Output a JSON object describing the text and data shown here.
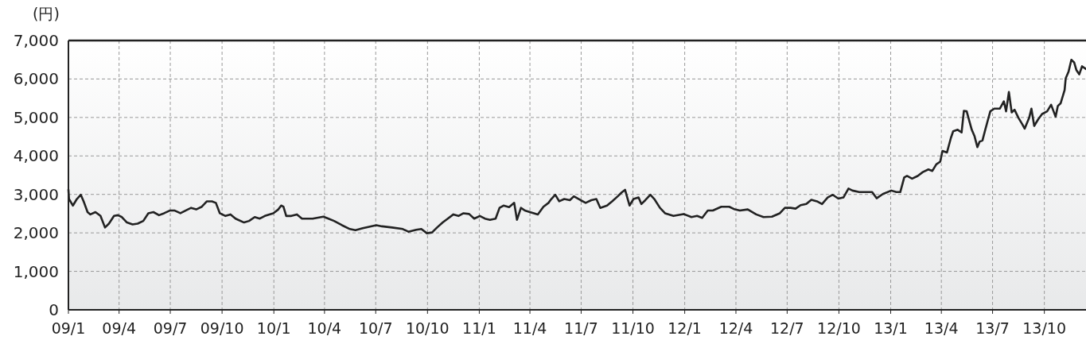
{
  "chart_data": {
    "type": "line",
    "ylabel": "(円)",
    "x": [
      "2009-01-01",
      "2009-01-02",
      "2009-01-09",
      "2009-01-16",
      "2009-01-23",
      "2009-01-28",
      "2009-02-04",
      "2009-02-09",
      "2009-02-18",
      "2009-02-27",
      "2009-03-07",
      "2009-03-14",
      "2009-03-23",
      "2009-03-30",
      "2009-04-06",
      "2009-04-15",
      "2009-04-25",
      "2009-05-04",
      "2009-05-14",
      "2009-05-23",
      "2009-06-01",
      "2009-06-11",
      "2009-06-20",
      "2009-06-30",
      "2009-07-09",
      "2009-07-19",
      "2009-07-28",
      "2009-08-07",
      "2009-08-16",
      "2009-08-26",
      "2009-09-04",
      "2009-09-13",
      "2009-09-20",
      "2009-09-27",
      "2009-10-07",
      "2009-10-16",
      "2009-10-25",
      "2009-11-09",
      "2009-11-18",
      "2009-11-28",
      "2009-12-07",
      "2009-12-16",
      "2009-12-31",
      "2010-01-09",
      "2010-01-14",
      "2010-01-18",
      "2010-01-23",
      "2010-02-01",
      "2010-02-11",
      "2010-02-20",
      "2010-03-11",
      "2010-03-30",
      "2010-04-08",
      "2010-04-18",
      "2010-05-02",
      "2010-05-16",
      "2010-05-26",
      "2010-06-08",
      "2010-07-02",
      "2010-07-12",
      "2010-07-30",
      "2010-08-18",
      "2010-08-28",
      "2010-09-11",
      "2010-09-20",
      "2010-09-30",
      "2010-10-09",
      "2010-10-18",
      "2010-10-28",
      "2010-11-06",
      "2010-11-16",
      "2010-11-25",
      "2010-12-04",
      "2010-12-14",
      "2010-12-23",
      "2011-01-02",
      "2011-01-11",
      "2011-01-20",
      "2011-01-30",
      "2011-02-06",
      "2011-02-13",
      "2011-02-23",
      "2011-03-04",
      "2011-03-09",
      "2011-03-16",
      "2011-03-23",
      "2011-04-01",
      "2011-04-15",
      "2011-04-25",
      "2011-05-04",
      "2011-05-09",
      "2011-05-16",
      "2011-05-23",
      "2011-06-01",
      "2011-06-11",
      "2011-06-18",
      "2011-06-30",
      "2011-07-09",
      "2011-07-19",
      "2011-07-28",
      "2011-08-04",
      "2011-08-16",
      "2011-08-25",
      "2011-09-04",
      "2011-09-11",
      "2011-09-17",
      "2011-09-25",
      "2011-10-02",
      "2011-10-11",
      "2011-10-16",
      "2011-10-23",
      "2011-11-01",
      "2011-11-08",
      "2011-11-18",
      "2011-11-27",
      "2011-12-12",
      "2011-12-30",
      "2012-01-13",
      "2012-01-23",
      "2012-02-01",
      "2012-02-11",
      "2012-02-20",
      "2012-03-06",
      "2012-03-20",
      "2012-03-30",
      "2012-04-08",
      "2012-04-22",
      "2012-05-07",
      "2012-05-20",
      "2012-06-04",
      "2012-06-18",
      "2012-06-27",
      "2012-07-07",
      "2012-07-16",
      "2012-07-25",
      "2012-08-04",
      "2012-08-13",
      "2012-08-23",
      "2012-09-01",
      "2012-09-11",
      "2012-09-20",
      "2012-09-30",
      "2012-10-09",
      "2012-10-18",
      "2012-10-25",
      "2012-11-06",
      "2012-11-20",
      "2012-11-29",
      "2012-12-07",
      "2012-12-18",
      "2013-01-02",
      "2013-01-11",
      "2013-01-18",
      "2013-01-25",
      "2013-01-30",
      "2013-02-08",
      "2013-02-18",
      "2013-02-27",
      "2013-03-09",
      "2013-03-16",
      "2013-03-23",
      "2013-03-30",
      "2013-04-03",
      "2013-04-11",
      "2013-04-18",
      "2013-04-22",
      "2013-04-30",
      "2013-05-07",
      "2013-05-11",
      "2013-05-16",
      "2013-05-21",
      "2013-05-25",
      "2013-05-30",
      "2013-06-04",
      "2013-06-08",
      "2013-06-13",
      "2013-06-18",
      "2013-06-23",
      "2013-06-27",
      "2013-07-04",
      "2013-07-14",
      "2013-07-21",
      "2013-07-25",
      "2013-07-30",
      "2013-08-04",
      "2013-08-09",
      "2013-08-16",
      "2013-08-23",
      "2013-08-27",
      "2013-09-04",
      "2013-09-08",
      "2013-09-13",
      "2013-09-20",
      "2013-09-27",
      "2013-10-06",
      "2013-10-13",
      "2013-10-21",
      "2013-10-25",
      "2013-10-30",
      "2013-11-06",
      "2013-11-08",
      "2013-11-13",
      "2013-11-18",
      "2013-11-23",
      "2013-11-27",
      "2013-12-02",
      "2013-12-07",
      "2013-12-14"
    ],
    "series": [
      {
        "color": "#222222",
        "values": [
          3120,
          2880,
          2710,
          2880,
          2990,
          2820,
          2540,
          2480,
          2540,
          2440,
          2140,
          2240,
          2440,
          2460,
          2410,
          2270,
          2220,
          2240,
          2310,
          2510,
          2540,
          2460,
          2510,
          2580,
          2580,
          2510,
          2580,
          2650,
          2610,
          2680,
          2820,
          2820,
          2780,
          2510,
          2440,
          2480,
          2370,
          2270,
          2310,
          2410,
          2370,
          2440,
          2510,
          2610,
          2710,
          2680,
          2440,
          2440,
          2480,
          2370,
          2370,
          2420,
          2370,
          2310,
          2200,
          2100,
          2070,
          2120,
          2200,
          2170,
          2140,
          2100,
          2030,
          2080,
          2100,
          1990,
          2010,
          2140,
          2270,
          2370,
          2480,
          2440,
          2510,
          2490,
          2370,
          2440,
          2370,
          2340,
          2370,
          2650,
          2710,
          2670,
          2780,
          2340,
          2650,
          2580,
          2540,
          2480,
          2680,
          2780,
          2880,
          2990,
          2820,
          2880,
          2850,
          2950,
          2850,
          2780,
          2850,
          2880,
          2650,
          2710,
          2820,
          2950,
          3050,
          3120,
          2710,
          2880,
          2920,
          2750,
          2850,
          2990,
          2880,
          2650,
          2510,
          2440,
          2490,
          2410,
          2440,
          2390,
          2580,
          2580,
          2680,
          2680,
          2610,
          2580,
          2610,
          2480,
          2410,
          2420,
          2510,
          2650,
          2650,
          2630,
          2720,
          2750,
          2860,
          2820,
          2750,
          2920,
          2990,
          2890,
          2920,
          3150,
          3100,
          3060,
          3060,
          3060,
          2900,
          3010,
          3100,
          3060,
          3060,
          3440,
          3480,
          3410,
          3480,
          3580,
          3650,
          3610,
          3780,
          3850,
          4130,
          4090,
          4470,
          4640,
          4680,
          4610,
          5170,
          5160,
          4890,
          4680,
          4510,
          4230,
          4370,
          4400,
          4680,
          4950,
          5160,
          5230,
          5230,
          5420,
          5160,
          5660,
          5130,
          5200,
          4990,
          4820,
          4710,
          4990,
          5230,
          4780,
          4950,
          5090,
          5160,
          5330,
          5020,
          5300,
          5370,
          5710,
          6020,
          6190,
          6500,
          6430,
          6230,
          6120,
          6330,
          6260
        ]
      }
    ],
    "xlim": [
      "2009-01-01",
      "2013-12-14"
    ],
    "ylim": [
      0,
      7000
    ],
    "xticks": [
      {
        "value": "2009-01",
        "label": "09/1"
      },
      {
        "value": "2009-04",
        "label": "09/4"
      },
      {
        "value": "2009-07",
        "label": "09/7"
      },
      {
        "value": "2009-10",
        "label": "09/10"
      },
      {
        "value": "2010-01",
        "label": "10/1"
      },
      {
        "value": "2010-04",
        "label": "10/4"
      },
      {
        "value": "2010-07",
        "label": "10/7"
      },
      {
        "value": "2010-10",
        "label": "10/10"
      },
      {
        "value": "2011-01",
        "label": "11/1"
      },
      {
        "value": "2011-04",
        "label": "11/4"
      },
      {
        "value": "2011-07",
        "label": "11/7"
      },
      {
        "value": "2011-10",
        "label": "11/10"
      },
      {
        "value": "2012-01",
        "label": "12/1"
      },
      {
        "value": "2012-04",
        "label": "12/4"
      },
      {
        "value": "2012-07",
        "label": "12/7"
      },
      {
        "value": "2012-10",
        "label": "12/10"
      },
      {
        "value": "2013-01",
        "label": "13/1"
      },
      {
        "value": "2013-04",
        "label": "13/4"
      },
      {
        "value": "2013-07",
        "label": "13/7"
      },
      {
        "value": "2013-10",
        "label": "13/10"
      }
    ],
    "yticks": [
      0,
      {
        "value": 1000,
        "label": "1,000"
      },
      {
        "value": 2000,
        "label": "2,000"
      },
      {
        "value": 3000,
        "label": "3,000"
      },
      {
        "value": 4000,
        "label": "4,000"
      },
      {
        "value": 5000,
        "label": "5,000"
      },
      {
        "value": 6000,
        "label": "6,000"
      },
      {
        "value": 7000,
        "label": "7,000"
      }
    ],
    "grid": true
  }
}
